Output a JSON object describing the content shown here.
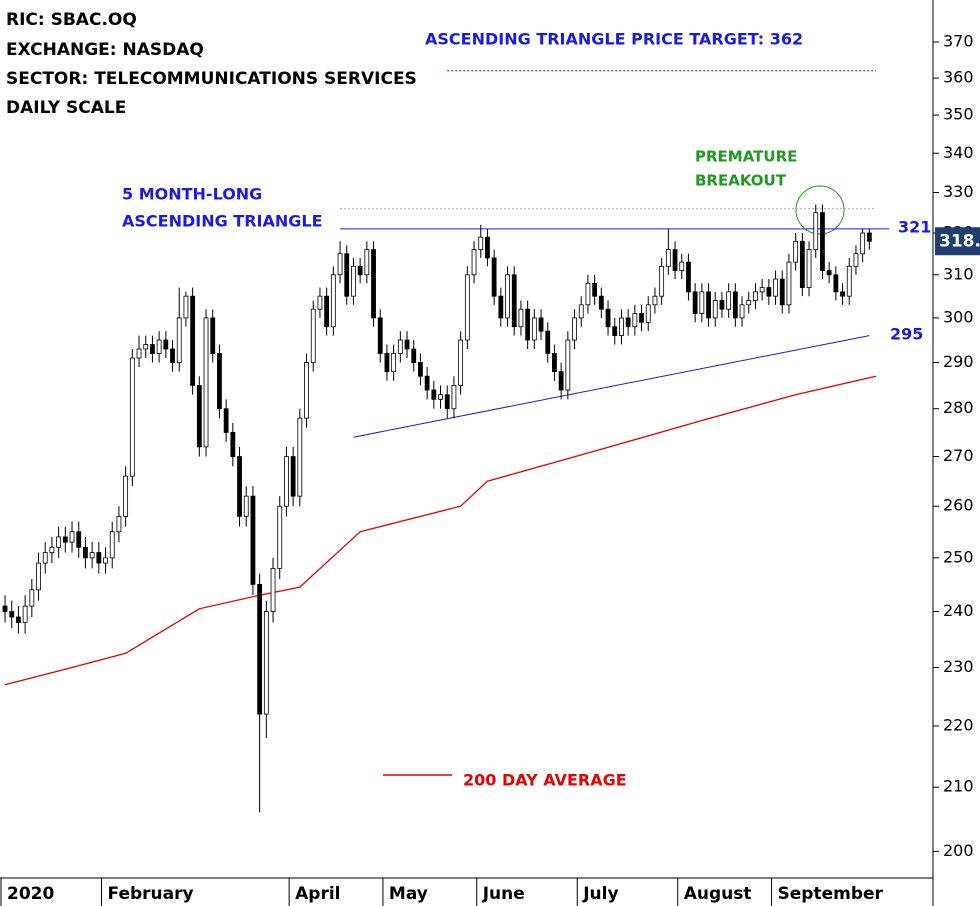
{
  "chart_data": {
    "type": "candlestick",
    "header": [
      "RIC: SBAC.OQ",
      "EXCHANGE: NASDAQ",
      "SECTOR: TELECOMMUNICATIONS SERVICES",
      "DAILY SCALE"
    ],
    "target_label": "ASCENDING TRIANGLE PRICE TARGET: 362",
    "triangle_label": [
      "5 MONTH-LONG",
      "ASCENDING TRIANGLE"
    ],
    "breakout_label": [
      "PREMATURE",
      "BREAKOUT"
    ],
    "resistance_label": "321",
    "support_label": "295",
    "ma_label": "200 DAY AVERAGE",
    "last_price_label": "318.",
    "log_scale": true,
    "ylim": [
      196,
      382
    ],
    "yticks": [
      200,
      210,
      220,
      230,
      240,
      250,
      260,
      270,
      280,
      290,
      300,
      310,
      320,
      330,
      340,
      350,
      360,
      370
    ],
    "xlim": [
      -0.75,
      138.5
    ],
    "xticks": [
      {
        "value": 0,
        "label": "2020"
      },
      {
        "value": 15,
        "label": "February"
      },
      {
        "value": 43,
        "label": "April"
      },
      {
        "value": 57,
        "label": "May"
      },
      {
        "value": 71,
        "label": "June"
      },
      {
        "value": 86,
        "label": "July"
      },
      {
        "value": 101,
        "label": "August"
      },
      {
        "value": 115,
        "label": "September"
      }
    ],
    "up_color": "#ffffff",
    "down_color": "#000000",
    "open": [
      241,
      240,
      239,
      238,
      241,
      244,
      249,
      251,
      252,
      254,
      253,
      255,
      252,
      250,
      251,
      249,
      250,
      255,
      258,
      266,
      291,
      293,
      294,
      292,
      295,
      293,
      290,
      300,
      305,
      285,
      272,
      300,
      292,
      280,
      275,
      270,
      258,
      262,
      245,
      222,
      240,
      248,
      260,
      270,
      262,
      278,
      290,
      302,
      305,
      298,
      310,
      315,
      305,
      312,
      310,
      316,
      300,
      292,
      288,
      292,
      295,
      293,
      290,
      287,
      284,
      282,
      283,
      280,
      285,
      295,
      310,
      316,
      319,
      314,
      305,
      300,
      310,
      298,
      302,
      295,
      300,
      297,
      292,
      288,
      284,
      295,
      300,
      303,
      308,
      305,
      302,
      298,
      296,
      300,
      298,
      301,
      299,
      303,
      305,
      312,
      316,
      311,
      313,
      306,
      301,
      306,
      300,
      304,
      302,
      306,
      300,
      303,
      304,
      306,
      307,
      305,
      309,
      303,
      313,
      318,
      307,
      316,
      325,
      311,
      310,
      306,
      305,
      312,
      315,
      320
    ],
    "high": [
      243,
      242,
      241,
      243,
      246,
      251,
      253,
      254,
      256,
      256,
      257,
      257,
      254,
      253,
      253,
      252,
      257,
      260,
      268,
      293,
      296,
      296,
      296,
      297,
      297,
      295,
      307,
      306,
      307,
      287,
      302,
      302,
      294,
      282,
      277,
      272,
      264,
      264,
      247,
      242,
      250,
      262,
      272,
      272,
      280,
      292,
      304,
      307,
      307,
      312,
      318,
      317,
      314,
      314,
      318,
      318,
      302,
      294,
      294,
      297,
      297,
      295,
      292,
      289,
      286,
      285,
      285,
      287,
      297,
      312,
      318,
      322,
      321,
      316,
      307,
      312,
      312,
      304,
      304,
      302,
      302,
      299,
      294,
      290,
      297,
      302,
      305,
      310,
      310,
      307,
      304,
      300,
      302,
      302,
      303,
      303,
      305,
      307,
      314,
      321,
      318,
      315,
      315,
      308,
      308,
      308,
      306,
      306,
      308,
      308,
      305,
      306,
      308,
      309,
      309,
      311,
      311,
      315,
      320,
      320,
      318,
      327,
      327,
      313,
      312,
      308,
      314,
      317,
      321,
      321
    ],
    "low": [
      238,
      237,
      236,
      236,
      239,
      242,
      247,
      249,
      250,
      251,
      251,
      250,
      248,
      248,
      247,
      247,
      248,
      253,
      256,
      264,
      289,
      291,
      290,
      290,
      291,
      288,
      288,
      298,
      283,
      270,
      270,
      290,
      278,
      273,
      268,
      256,
      256,
      243,
      206,
      218,
      238,
      246,
      258,
      260,
      260,
      276,
      288,
      300,
      296,
      296,
      308,
      303,
      303,
      308,
      308,
      298,
      290,
      286,
      286,
      290,
      291,
      288,
      285,
      282,
      280,
      280,
      278,
      278,
      283,
      293,
      308,
      314,
      312,
      303,
      298,
      298,
      296,
      296,
      293,
      293,
      295,
      290,
      286,
      282,
      282,
      293,
      298,
      301,
      303,
      300,
      296,
      294,
      294,
      296,
      296,
      297,
      297,
      301,
      303,
      310,
      309,
      309,
      304,
      299,
      299,
      298,
      298,
      300,
      300,
      298,
      298,
      301,
      302,
      304,
      303,
      303,
      301,
      301,
      311,
      305,
      305,
      314,
      309,
      308,
      304,
      303,
      303,
      310,
      313,
      316
    ],
    "close": [
      240,
      239,
      238,
      241,
      244,
      249,
      251,
      252,
      254,
      253,
      255,
      252,
      250,
      251,
      249,
      250,
      255,
      258,
      266,
      291,
      293,
      294,
      292,
      295,
      293,
      290,
      300,
      305,
      285,
      272,
      300,
      292,
      280,
      275,
      270,
      258,
      262,
      245,
      222,
      240,
      248,
      260,
      270,
      262,
      278,
      290,
      302,
      305,
      298,
      310,
      315,
      305,
      312,
      310,
      316,
      300,
      292,
      288,
      292,
      295,
      293,
      290,
      287,
      284,
      282,
      283,
      280,
      285,
      295,
      310,
      316,
      319,
      314,
      305,
      300,
      310,
      298,
      302,
      295,
      300,
      297,
      292,
      288,
      284,
      295,
      300,
      303,
      308,
      305,
      302,
      298,
      296,
      300,
      298,
      301,
      299,
      303,
      305,
      312,
      316,
      311,
      313,
      306,
      301,
      306,
      300,
      304,
      302,
      306,
      300,
      303,
      304,
      306,
      307,
      305,
      309,
      303,
      313,
      318,
      307,
      316,
      325,
      311,
      310,
      306,
      305,
      312,
      315,
      320,
      318
    ],
    "moving_average": {
      "color": "#e60000",
      "x": [
        0,
        10,
        18,
        29,
        38,
        44,
        53,
        68,
        72,
        89,
        104,
        118,
        130
      ],
      "values": [
        227,
        230,
        232.5,
        240.5,
        243,
        244.5,
        255,
        260,
        265,
        271.5,
        277.5,
        283,
        287
      ]
    },
    "lines": [
      {
        "x": [
          50,
          132
        ],
        "values": [
          321,
          321
        ],
        "color": "#1a1ae6",
        "style": "solid"
      },
      {
        "x": [
          52,
          129
        ],
        "values": [
          274,
          296
        ],
        "color": "#1a1ae6",
        "style": "solid"
      },
      {
        "x": [
          66,
          130
        ],
        "values": [
          362,
          362
        ],
        "color": "#1a1ae6",
        "style": "dotted"
      },
      {
        "x": [
          50,
          130
        ],
        "values": [
          326,
          326
        ],
        "color": "#aaaaaa",
        "style": "dotted"
      }
    ]
  }
}
